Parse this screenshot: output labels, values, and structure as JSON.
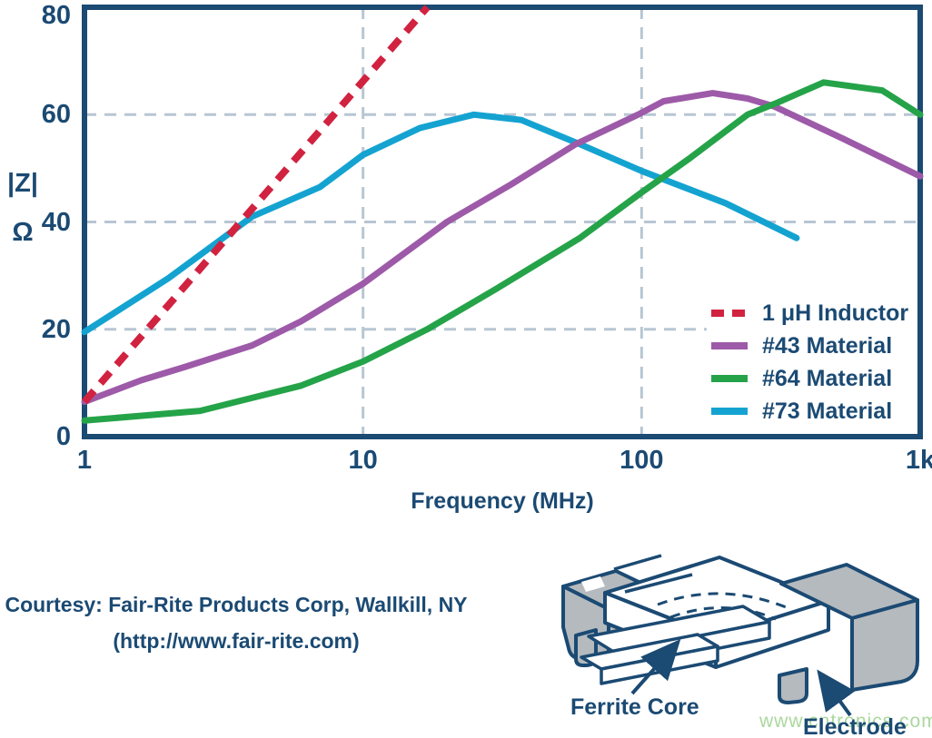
{
  "chart_data": {
    "type": "line",
    "title": "",
    "xlabel": "Frequency (MHz)",
    "ylabel": "|Z|",
    "ylabel_units": "Ω",
    "x_scale": "log",
    "xlim": [
      1,
      1000
    ],
    "ylim": [
      0,
      80
    ],
    "grid": true,
    "x_gridlines": [
      10,
      100
    ],
    "y_gridlines": [
      20,
      40,
      60
    ],
    "xticks": [
      {
        "label": "1",
        "value": 1
      },
      {
        "label": "10",
        "value": 10
      },
      {
        "label": "100",
        "value": 100
      },
      {
        "label": "1k",
        "value": 1000
      }
    ],
    "yticks": [
      {
        "label": "0",
        "value": 0
      },
      {
        "label": "20",
        "value": 20
      },
      {
        "label": "40",
        "value": 40
      },
      {
        "label": "60",
        "value": 60
      },
      {
        "label": "80",
        "value": 80
      }
    ],
    "legend_position": "inside bottom-right",
    "draw_order": [
      3,
      1,
      2,
      0
    ],
    "series": [
      {
        "name": "1 μH Inductor",
        "color": "#d12240",
        "dashed": true,
        "points": [
          [
            1,
            6.5
          ],
          [
            17,
            80
          ]
        ]
      },
      {
        "name": "#43 Material",
        "color": "#9d5aa8",
        "dashed": false,
        "points": [
          [
            1,
            6.5
          ],
          [
            1.6,
            10.5
          ],
          [
            2.3,
            13
          ],
          [
            4,
            17
          ],
          [
            6,
            21.5
          ],
          [
            10,
            28.5
          ],
          [
            20,
            40
          ],
          [
            34,
            47
          ],
          [
            58,
            54.5
          ],
          [
            97,
            60
          ],
          [
            120,
            62.5
          ],
          [
            180,
            64
          ],
          [
            240,
            63
          ],
          [
            300,
            61.5
          ],
          [
            530,
            55.5
          ],
          [
            1000,
            48.5
          ]
        ]
      },
      {
        "name": "#64 Material",
        "color": "#25a349",
        "dashed": false,
        "points": [
          [
            1,
            3
          ],
          [
            2.6,
            4.8
          ],
          [
            6,
            9.5
          ],
          [
            10,
            14
          ],
          [
            17,
            20
          ],
          [
            30,
            27.5
          ],
          [
            60,
            37
          ],
          [
            100,
            45.5
          ],
          [
            150,
            52
          ],
          [
            240,
            60
          ],
          [
            300,
            62
          ],
          [
            450,
            66
          ],
          [
            730,
            64.5
          ],
          [
            1000,
            60
          ]
        ]
      },
      {
        "name": "#73 Material",
        "color": "#14a3d1",
        "dashed": false,
        "points": [
          [
            1,
            19.5
          ],
          [
            2,
            29.5
          ],
          [
            4,
            41
          ],
          [
            7,
            46.5
          ],
          [
            10,
            52.5
          ],
          [
            16,
            57.5
          ],
          [
            25,
            60
          ],
          [
            37,
            59
          ],
          [
            60,
            54.5
          ],
          [
            100,
            49.5
          ],
          [
            200,
            43.5
          ],
          [
            360,
            37
          ]
        ]
      }
    ]
  },
  "footer": {
    "courtesy_line1": "Courtesy: Fair-Rite Products Corp, Wallkill, NY",
    "courtesy_line2": "(http://www.fair-rite.com)"
  },
  "illustration": {
    "label_ferrite": "Ferrite Core",
    "label_electrode": "Electrode",
    "watermark": "www.cntronics.com"
  },
  "colors": {
    "navy": "#1b4a73",
    "grid": "#b8c6d3",
    "electrode_gray": "#b5babe",
    "watermark_green": "#abd89e"
  }
}
